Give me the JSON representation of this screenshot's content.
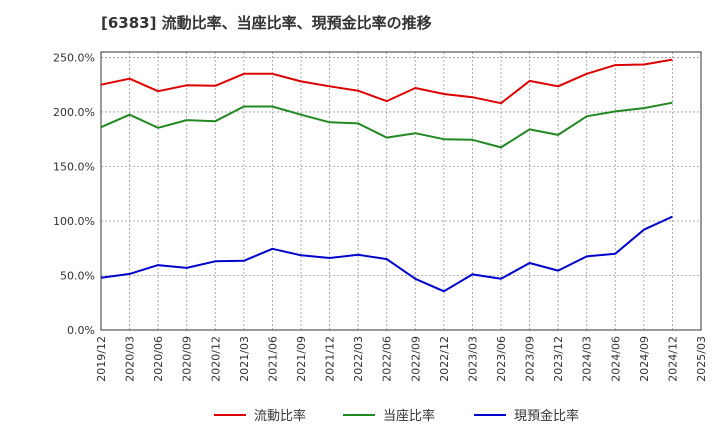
{
  "chart_data": {
    "type": "line",
    "title": "[6383]  流動比率、当座比率、現預金比率の推移",
    "xlabel": "",
    "ylabel": "",
    "ylim": [
      0,
      255
    ],
    "yticks": [
      0,
      50,
      100,
      150,
      200,
      250
    ],
    "ytick_labels": [
      "0.0%",
      "50.0%",
      "100.0%",
      "150.0%",
      "200.0%",
      "250.0%"
    ],
    "grid": true,
    "legend_position": "bottom",
    "categories": [
      "2019/12",
      "2020/03",
      "2020/06",
      "2020/09",
      "2020/12",
      "2021/03",
      "2021/06",
      "2021/09",
      "2021/12",
      "2022/03",
      "2022/06",
      "2022/09",
      "2022/12",
      "2023/03",
      "2023/06",
      "2023/09",
      "2023/12",
      "2024/03",
      "2024/06",
      "2024/09",
      "2024/12",
      "2025/03"
    ],
    "series": [
      {
        "name": "流動比率",
        "color": "#dd0000",
        "values": [
          225,
          230.5,
          219,
          224.5,
          224,
          235,
          235,
          228,
          223.5,
          219.5,
          210,
          222,
          216.5,
          213.5,
          208,
          228.5,
          223.5,
          235,
          243,
          243.5,
          248,
          null
        ]
      },
      {
        "name": "当座比率",
        "color": "#228822",
        "values": [
          186,
          197.5,
          185.5,
          192.5,
          191.5,
          205,
          205,
          197.5,
          190.5,
          189.5,
          176.5,
          180.5,
          175,
          174.5,
          167.5,
          184,
          179,
          196,
          200.5,
          203.5,
          208.5,
          null
        ]
      },
      {
        "name": "現預金比率",
        "color": "#0000cc",
        "values": [
          48,
          51.5,
          59.5,
          57,
          63,
          63.5,
          74.5,
          68.5,
          66,
          69,
          65,
          47,
          35.5,
          51,
          47,
          61.5,
          54.5,
          67.5,
          70,
          92,
          104,
          null
        ]
      }
    ]
  }
}
